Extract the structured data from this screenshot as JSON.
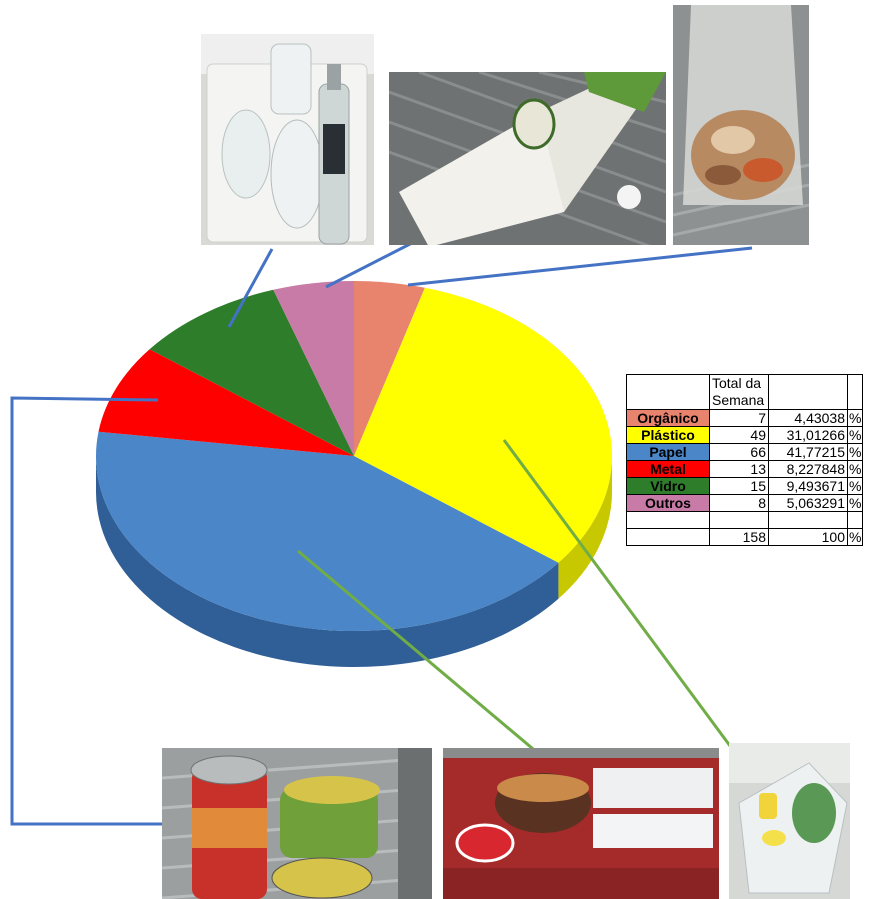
{
  "chart_data": {
    "type": "pie",
    "categories": [
      "Orgânico",
      "Plástico",
      "Papel",
      "Metal",
      "Vidro",
      "Outros"
    ],
    "values": [
      7,
      49,
      66,
      13,
      15,
      8
    ],
    "percentages": [
      "4,43038",
      "31,01266",
      "41,77215",
      "8,227848",
      "9,493671",
      "5,063291"
    ],
    "colors": [
      "#E8836E",
      "#FFFF00",
      "#4A86C8",
      "#FF0000",
      "#2E7D2A",
      "#C77BA6"
    ],
    "side_colors": [
      "#B8604C",
      "#C8C800",
      "#2F5F96",
      "#B00000",
      "#1E5A1C",
      "#9A5A80"
    ],
    "label_text_colors": [
      "#000000",
      "#000000",
      "#000000",
      "#000000",
      "#000000",
      "#000000"
    ],
    "title": ""
  },
  "table": {
    "header": "Total da Semana",
    "unit": "%",
    "total": "158",
    "total_pct": "100"
  },
  "photos": [
    {
      "name": "photo-glass-jars",
      "depicts": "glass jars and bottle",
      "category": "Vidro"
    },
    {
      "name": "photo-milk-carton",
      "depicts": "milk carton",
      "category": "Plástico"
    },
    {
      "name": "photo-organic-bag",
      "depicts": "bag of food scraps",
      "category": "Orgânico"
    },
    {
      "name": "photo-metal-cans",
      "depicts": "metal cans",
      "category": "Metal"
    },
    {
      "name": "photo-paper-boxes",
      "depicts": "paper food boxes",
      "category": "Papel"
    },
    {
      "name": "photo-plastic-items",
      "depicts": "plastic containers",
      "category": "Plástico"
    }
  ],
  "connector_colors": {
    "blue": "#4472C4",
    "green": "#70AD47"
  }
}
